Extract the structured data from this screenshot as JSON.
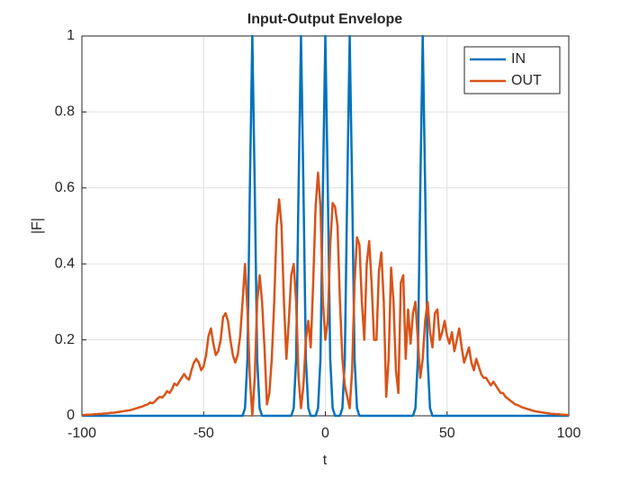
{
  "chart_data": {
    "type": "line",
    "title": "Input-Output Envelope",
    "x_label": "t",
    "y_label": "|F|",
    "x": [
      -100,
      -99,
      -98,
      -97,
      -96,
      -95,
      -94,
      -93,
      -92,
      -91,
      -90,
      -89,
      -88,
      -87,
      -86,
      -85,
      -84,
      -83,
      -82,
      -81,
      -80,
      -79,
      -78,
      -77,
      -76,
      -75,
      -74,
      -73,
      -72,
      -71,
      -70,
      -69,
      -68,
      -67,
      -66,
      -65,
      -64,
      -63,
      -62,
      -61,
      -60,
      -59,
      -58,
      -57,
      -56,
      -55,
      -54,
      -53,
      -52,
      -51,
      -50,
      -49,
      -48,
      -47,
      -46,
      -45,
      -44,
      -43,
      -42,
      -41,
      -40,
      -39,
      -38,
      -37,
      -36,
      -35,
      -34,
      -33,
      -32,
      -31,
      -30,
      -29,
      -28,
      -27,
      -26,
      -25,
      -24,
      -23,
      -22,
      -21,
      -20,
      -19,
      -18,
      -17,
      -16,
      -15,
      -14,
      -13,
      -12,
      -11,
      -10,
      -9,
      -8,
      -7,
      -6,
      -5,
      -4,
      -3,
      -2,
      -1,
      0,
      1,
      2,
      3,
      4,
      5,
      6,
      7,
      8,
      9,
      10,
      11,
      12,
      13,
      14,
      15,
      16,
      17,
      18,
      19,
      20,
      21,
      22,
      23,
      24,
      25,
      26,
      27,
      28,
      29,
      30,
      31,
      32,
      33,
      34,
      35,
      36,
      37,
      38,
      39,
      40,
      41,
      42,
      43,
      44,
      45,
      46,
      47,
      48,
      49,
      50,
      51,
      52,
      53,
      54,
      55,
      56,
      57,
      58,
      59,
      60,
      61,
      62,
      63,
      64,
      65,
      66,
      67,
      68,
      69,
      70,
      71,
      72,
      73,
      74,
      75,
      76,
      77,
      78,
      79,
      80,
      81,
      82,
      83,
      84,
      85,
      86,
      87,
      88,
      89,
      90,
      91,
      92,
      93,
      94,
      95,
      96,
      97,
      98,
      99,
      100
    ],
    "series": [
      {
        "name": "IN",
        "color": "#0072BD",
        "values": [
          0,
          0,
          0,
          0,
          0,
          0,
          0,
          0,
          0,
          0,
          0,
          0,
          0,
          0,
          0,
          0,
          0,
          0,
          0,
          0,
          0,
          0,
          0,
          0,
          0,
          0,
          0,
          0,
          0,
          0,
          0,
          0,
          0,
          0,
          0,
          0,
          0,
          0,
          0,
          0,
          0,
          0,
          0,
          0,
          0,
          0,
          0,
          0,
          0,
          0,
          0,
          0,
          0,
          0,
          0,
          0,
          0,
          0,
          0,
          0,
          0,
          0,
          0,
          0,
          0,
          0,
          0,
          0.02,
          0.15,
          0.6,
          1,
          0.6,
          0.15,
          0.02,
          0,
          0,
          0,
          0,
          0,
          0,
          0,
          0,
          0,
          0,
          0,
          0,
          0,
          0.02,
          0.15,
          0.6,
          1,
          0.6,
          0.15,
          0.02,
          0,
          0,
          0,
          0.02,
          0.15,
          0.6,
          1,
          0.6,
          0.15,
          0.02,
          0,
          0,
          0,
          0.02,
          0.15,
          0.6,
          1,
          0.6,
          0.15,
          0.02,
          0,
          0,
          0,
          0,
          0,
          0,
          0,
          0,
          0,
          0,
          0,
          0,
          0,
          0,
          0,
          0,
          0,
          0,
          0,
          0,
          0,
          0,
          0,
          0.02,
          0.15,
          0.6,
          1,
          0.6,
          0.15,
          0.02,
          0,
          0,
          0,
          0,
          0,
          0,
          0,
          0,
          0,
          0,
          0,
          0,
          0,
          0,
          0,
          0,
          0,
          0,
          0,
          0,
          0,
          0,
          0,
          0,
          0,
          0,
          0,
          0,
          0,
          0,
          0,
          0,
          0,
          0,
          0,
          0,
          0,
          0,
          0,
          0,
          0,
          0,
          0,
          0,
          0,
          0,
          0,
          0,
          0,
          0,
          0,
          0,
          0,
          0,
          0,
          0,
          0
        ]
      },
      {
        "name": "OUT",
        "color": "#D95319",
        "values": [
          0.002,
          0.002,
          0.003,
          0.003,
          0.003,
          0.004,
          0.004,
          0.005,
          0.005,
          0.006,
          0.006,
          0.007,
          0.008,
          0.008,
          0.009,
          0.01,
          0.011,
          0.012,
          0.013,
          0.014,
          0.015,
          0.017,
          0.019,
          0.021,
          0.023,
          0.025,
          0.028,
          0.03,
          0.035,
          0.033,
          0.038,
          0.045,
          0.05,
          0.048,
          0.055,
          0.065,
          0.06,
          0.07,
          0.085,
          0.08,
          0.09,
          0.1,
          0.11,
          0.1,
          0.095,
          0.12,
          0.14,
          0.15,
          0.14,
          0.12,
          0.13,
          0.16,
          0.21,
          0.23,
          0.19,
          0.16,
          0.17,
          0.2,
          0.26,
          0.27,
          0.25,
          0.2,
          0.16,
          0.14,
          0.16,
          0.21,
          0.3,
          0.4,
          0.28,
          0.1,
          0.0,
          0.1,
          0.3,
          0.37,
          0.3,
          0.18,
          0.03,
          0.06,
          0.15,
          0.3,
          0.5,
          0.57,
          0.5,
          0.3,
          0.15,
          0.25,
          0.37,
          0.4,
          0.3,
          0.1,
          0.02,
          0.08,
          0.2,
          0.25,
          0.18,
          0.35,
          0.55,
          0.64,
          0.55,
          0.3,
          0.2,
          0.25,
          0.45,
          0.56,
          0.55,
          0.5,
          0.3,
          0.15,
          0.08,
          0.05,
          0.02,
          0.12,
          0.35,
          0.47,
          0.45,
          0.3,
          0.2,
          0.4,
          0.46,
          0.35,
          0.2,
          0.2,
          0.38,
          0.43,
          0.3,
          0.05,
          0.15,
          0.39,
          0.3,
          0.12,
          0.06,
          0.35,
          0.37,
          0.15,
          0.28,
          0.19,
          0.27,
          0.3,
          0.2,
          0.1,
          0.15,
          0.25,
          0.3,
          0.22,
          0.18,
          0.27,
          0.28,
          0.2,
          0.22,
          0.25,
          0.21,
          0.19,
          0.22,
          0.17,
          0.2,
          0.23,
          0.18,
          0.14,
          0.16,
          0.18,
          0.14,
          0.12,
          0.15,
          0.13,
          0.11,
          0.1,
          0.1,
          0.09,
          0.08,
          0.09,
          0.08,
          0.07,
          0.06,
          0.06,
          0.05,
          0.045,
          0.04,
          0.035,
          0.03,
          0.028,
          0.025,
          0.022,
          0.02,
          0.018,
          0.016,
          0.014,
          0.012,
          0.011,
          0.01,
          0.009,
          0.008,
          0.007,
          0.006,
          0.005,
          0.005,
          0.004,
          0.004,
          0.003,
          0.003,
          0.002,
          0.002
        ]
      }
    ],
    "xlim": [
      -100,
      100
    ],
    "xticks": [
      -100,
      -50,
      0,
      50,
      100
    ],
    "ylim": [
      0,
      1
    ],
    "yticks": [
      0,
      0.2,
      0.4,
      0.6,
      0.8,
      1
    ],
    "grid": true,
    "legend": "northeast"
  }
}
